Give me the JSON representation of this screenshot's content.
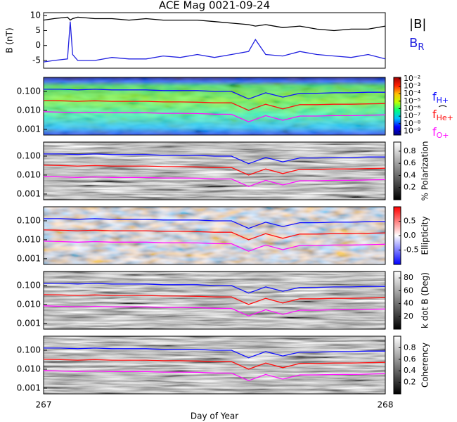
{
  "chart_data": [
    {
      "type": "line",
      "title": "ACE Mag 0021-09-24",
      "y_label": "B (nT)",
      "x": [
        267,
        267.03,
        267.07,
        267.078,
        267.085,
        267.1,
        267.15,
        267.2,
        267.25,
        267.3,
        267.35,
        267.4,
        267.45,
        267.5,
        267.55,
        267.6,
        267.62,
        267.65,
        267.7,
        267.75,
        267.8,
        267.85,
        267.9,
        267.95,
        268
      ],
      "series": [
        {
          "name": "|B|",
          "color": "#000000",
          "values": [
            8.5,
            9,
            9.5,
            8.5,
            9,
            9.5,
            9,
            9,
            8.5,
            9,
            8.5,
            8.5,
            8.5,
            8,
            7.5,
            7,
            6.5,
            7,
            6,
            6.5,
            5.5,
            5,
            5.5,
            5.5,
            6.5
          ]
        },
        {
          "name": "B",
          "name_sub": "R",
          "color": "#2020e0",
          "values": [
            -5.5,
            -5,
            -4.5,
            8,
            -3,
            -5,
            -5,
            -4,
            -4.5,
            -4.5,
            -3.5,
            -4,
            -3,
            -4,
            -3,
            -2,
            2,
            -3,
            -3.5,
            -2,
            -3,
            -3.5,
            -4,
            -3,
            -4.5
          ]
        }
      ],
      "xlim": [
        267,
        268
      ],
      "ylim": [
        -7.6,
        11
      ],
      "yticks": [
        -5,
        0,
        5,
        10
      ]
    },
    {
      "type": "spectrogram",
      "log_y": true,
      "x": [
        267,
        267.05,
        267.1,
        267.15,
        267.2,
        267.25,
        267.3,
        267.35,
        267.4,
        267.45,
        267.5,
        267.55,
        267.6,
        267.65,
        267.7,
        267.75,
        267.8,
        267.85,
        267.9,
        267.95,
        268
      ],
      "series": [
        {
          "name": "f",
          "name_sub": "H+",
          "color": "#1010ff",
          "values": [
            0.13,
            0.13,
            0.12,
            0.13,
            0.12,
            0.12,
            0.12,
            0.11,
            0.11,
            0.11,
            0.1,
            0.1,
            0.04,
            0.085,
            0.05,
            0.08,
            0.08,
            0.085,
            0.085,
            0.09,
            0.09
          ]
        },
        {
          "name": "f",
          "name_sub": "He+",
          "color": "#ff1010",
          "values": [
            0.033,
            0.032,
            0.03,
            0.032,
            0.03,
            0.03,
            0.03,
            0.028,
            0.028,
            0.027,
            0.025,
            0.025,
            0.01,
            0.021,
            0.012,
            0.02,
            0.02,
            0.021,
            0.021,
            0.022,
            0.023
          ]
        },
        {
          "name": "f",
          "name_sub": "O+",
          "color": "#ff10ff",
          "values": [
            0.0085,
            0.008,
            0.0075,
            0.008,
            0.0075,
            0.0075,
            0.0075,
            0.007,
            0.007,
            0.0068,
            0.0063,
            0.0062,
            0.0025,
            0.0053,
            0.003,
            0.005,
            0.005,
            0.0053,
            0.0053,
            0.0055,
            0.0058
          ]
        }
      ],
      "xlim": [
        267,
        268
      ],
      "ylim": [
        0.0005,
        0.55
      ],
      "yticks": [
        {
          "value": 0.1,
          "label": "0.100"
        },
        {
          "value": 0.01,
          "label": "0.010"
        },
        {
          "value": 0.001,
          "label": "0.001"
        }
      ],
      "colorbar": {
        "label": ")",
        "log": true,
        "lim": [
          3e-10,
          0.015
        ],
        "colors": [
          "#000080",
          "#0000ff",
          "#00c0ff",
          "#00ff80",
          "#c0ff00",
          "#ffc000",
          "#ff2000",
          "#a00000"
        ],
        "ticks": [
          {
            "value": 0.01,
            "label": "10⁻²"
          },
          {
            "value": 0.001,
            "label": "10⁻³"
          },
          {
            "value": 0.0001,
            "label": "10⁻⁴"
          },
          {
            "value": 1e-05,
            "label": "10⁻⁵"
          },
          {
            "value": 1e-06,
            "label": "10⁻⁶"
          },
          {
            "value": 1e-07,
            "label": "10⁻⁷"
          },
          {
            "value": 1e-08,
            "label": "10⁻⁸"
          },
          {
            "value": 1e-09,
            "label": "10⁻⁹"
          }
        ]
      }
    },
    {
      "type": "spectrogram",
      "log_y": true,
      "xlim": [
        267,
        268
      ],
      "ylim": [
        0.0005,
        0.55
      ],
      "yticks": [
        {
          "value": 0.1,
          "label": "0.100"
        },
        {
          "value": 0.01,
          "label": "0.010"
        },
        {
          "value": 0.001,
          "label": "0.001"
        }
      ],
      "colorbar": {
        "label": "% Polarization",
        "lim": [
          0,
          0.95
        ],
        "colors": [
          "#000000",
          "#ffffff"
        ],
        "ticks": [
          0.2,
          0.4,
          0.6,
          0.8
        ]
      }
    },
    {
      "type": "spectrogram",
      "log_y": true,
      "xlim": [
        267,
        268
      ],
      "ylim": [
        0.0005,
        0.55
      ],
      "yticks": [
        {
          "value": 0.1,
          "label": "0.100"
        },
        {
          "value": 0.01,
          "label": "0.010"
        },
        {
          "value": 0.001,
          "label": "0.001"
        }
      ],
      "colorbar": {
        "label": "Ellipticity",
        "lim": [
          -1,
          1
        ],
        "colors": [
          "#0000ff",
          "#ffffff",
          "#ff0000"
        ],
        "ticks": [
          -0.5,
          {
            "value": 0,
            "label": "0.0"
          },
          0.5
        ]
      }
    },
    {
      "type": "spectrogram",
      "log_y": true,
      "xlim": [
        267,
        268
      ],
      "ylim": [
        0.0005,
        0.55
      ],
      "yticks": [
        {
          "value": 0.1,
          "label": "0.100"
        },
        {
          "value": 0.01,
          "label": "0.010"
        },
        {
          "value": 0.001,
          "label": "0.001"
        }
      ],
      "colorbar": {
        "label": "k dot B (Deg)",
        "lim": [
          0,
          90
        ],
        "colors": [
          "#000000",
          "#ffffff"
        ],
        "ticks": [
          20,
          40,
          60,
          80
        ]
      }
    },
    {
      "type": "spectrogram",
      "log_y": true,
      "xlim": [
        267,
        268
      ],
      "ylim": [
        0.0005,
        0.55
      ],
      "yticks": [
        {
          "value": 0.1,
          "label": "0.100"
        },
        {
          "value": 0.01,
          "label": "0.010"
        },
        {
          "value": 0.001,
          "label": "0.001"
        }
      ],
      "colorbar": {
        "label": "Coherency",
        "lim": [
          0,
          1
        ],
        "colors": [
          "#000000",
          "#ffffff"
        ],
        "ticks": [
          0.2,
          0.4,
          0.6,
          0.8
        ]
      },
      "x_label": "Day of Year",
      "xticks": [
        267,
        268
      ]
    }
  ]
}
